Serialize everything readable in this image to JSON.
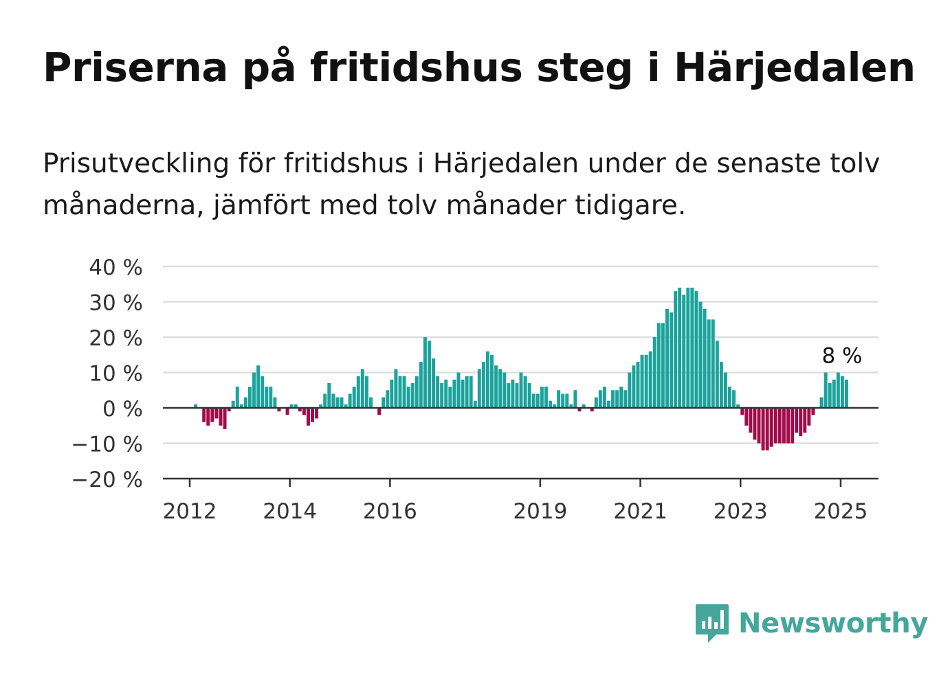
{
  "header": {
    "title": "Priserna på fritidshus steg i Härjedalen",
    "subtitle": "Prisutveckling för fritidshus i Härjedalen under de senaste tolv månaderna, jämfört med tolv månader tidigare."
  },
  "brand": {
    "name": "Newsworthy",
    "icon": "newsworthy-chart-bubble-icon",
    "color": "#45a69b"
  },
  "colors": {
    "positive": "#1ba39c",
    "negative": "#a10c4a",
    "grid": "#dddddd",
    "axis": "#333333"
  },
  "chart_data": {
    "type": "bar",
    "y_tick_labels": [
      "40 %",
      "30 %",
      "20 %",
      "10 %",
      "0 %",
      "−10 %",
      "−20 %"
    ],
    "y_ticks": [
      40,
      30,
      20,
      10,
      0,
      -10,
      -20
    ],
    "ylim": [
      -20,
      40
    ],
    "x_tick_labels": [
      "2012",
      "2014",
      "2016",
      "2019",
      "2021",
      "2023",
      "2025"
    ],
    "x_tick_years": [
      2012,
      2014,
      2016,
      2019,
      2021,
      2023,
      2025
    ],
    "start": "2012-01",
    "values": [
      0,
      1,
      0,
      -4,
      -5,
      -4,
      -3,
      -5,
      -6,
      -1,
      2,
      6,
      1,
      3,
      6,
      10,
      12,
      9,
      6,
      6,
      3,
      -1,
      0,
      -2,
      1,
      1,
      -1,
      -2,
      -5,
      -4,
      -3,
      1,
      4,
      7,
      4,
      3,
      3,
      1,
      4,
      6,
      9,
      11,
      9,
      3,
      0,
      -2,
      3,
      5,
      8,
      11,
      9,
      9,
      6,
      7,
      9,
      13,
      20,
      19,
      14,
      9,
      7,
      8,
      6,
      8,
      10,
      8,
      9,
      9,
      2,
      11,
      13,
      16,
      15,
      12,
      11,
      10,
      7,
      8,
      7,
      10,
      9,
      7,
      4,
      4,
      6,
      6,
      2,
      1,
      5,
      4,
      4,
      1,
      5,
      -1,
      1,
      0,
      -1,
      3,
      5,
      6,
      2,
      5,
      5,
      6,
      5,
      10,
      12,
      13,
      15,
      15,
      16,
      20,
      24,
      24,
      28,
      27,
      33,
      34,
      32,
      34,
      34,
      33,
      30,
      28,
      25,
      25,
      19,
      13,
      10,
      6,
      5,
      1,
      -2,
      -5,
      -7,
      -9,
      -10,
      -12,
      -12,
      -11,
      -10,
      -10,
      -10,
      -10,
      -10,
      -7,
      -8,
      -7,
      -5,
      -2,
      0,
      3,
      10,
      7,
      8,
      10,
      9,
      8
    ],
    "highlight_label": "8 %"
  }
}
